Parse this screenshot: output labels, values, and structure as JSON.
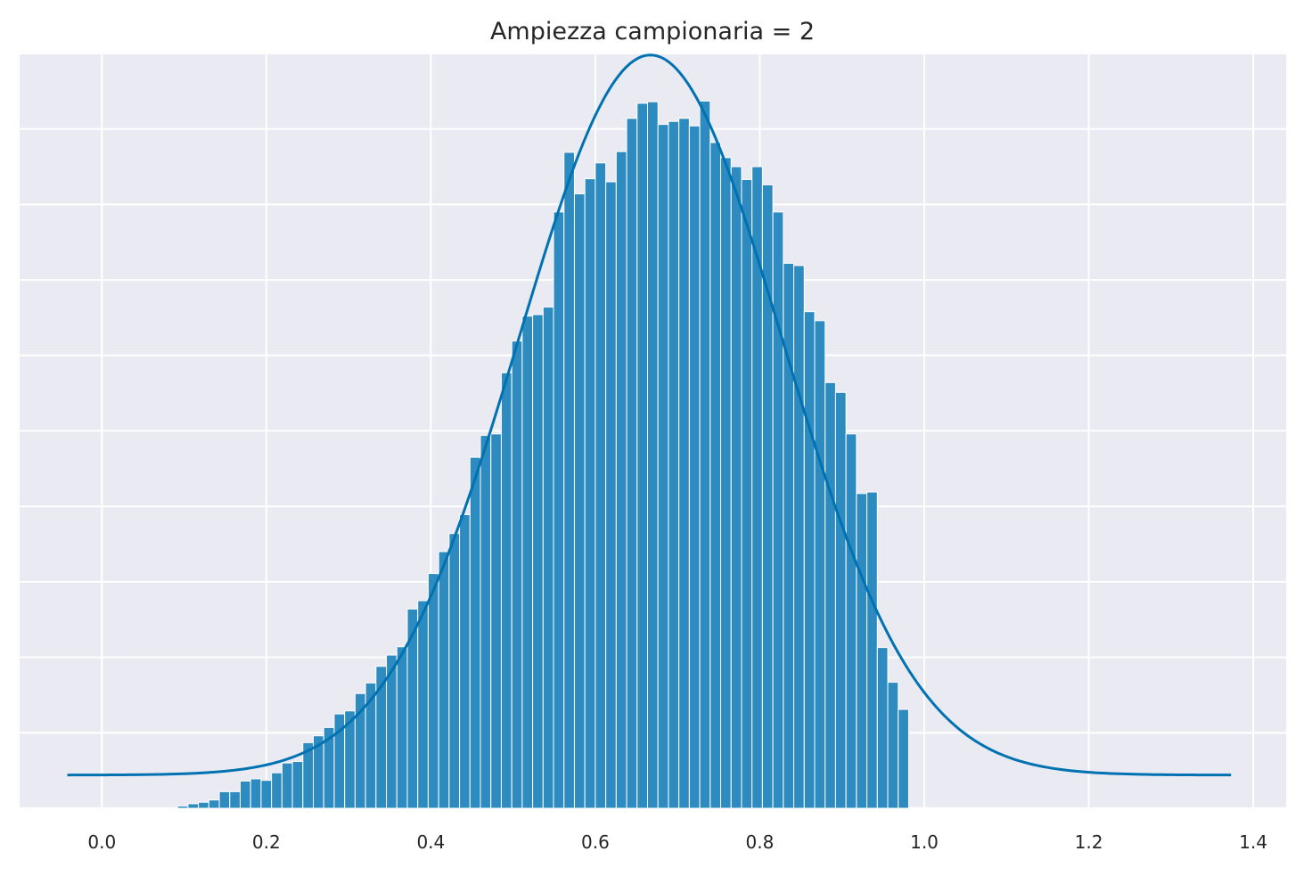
{
  "chart_data": {
    "type": "bar",
    "title": "Ampiezza campionaria = 2",
    "xlabel": "",
    "ylabel": "",
    "xlim": [
      -0.1,
      1.44
    ],
    "ylim": [
      0,
      1.0
    ],
    "x_ticks": [
      {
        "value": 0.0,
        "label": "0.0"
      },
      {
        "value": 0.2,
        "label": "0.2"
      },
      {
        "value": 0.4,
        "label": "0.4"
      },
      {
        "value": 0.6,
        "label": "0.6"
      },
      {
        "value": 0.8,
        "label": "0.8"
      },
      {
        "value": 1.0,
        "label": "1.0"
      },
      {
        "value": 1.2,
        "label": "1.2"
      },
      {
        "value": 1.4,
        "label": "1.4"
      }
    ],
    "grid": true,
    "colors": {
      "bar": "#2e8bc0",
      "bar_edge": "#ffffff",
      "curve": "#0072b2",
      "axes_background": "#eaeaf2",
      "grid": "#ffffff"
    },
    "series": [
      {
        "kind": "histogram",
        "bin_width": 0.0127,
        "bins_start": [
          0.092,
          0.1047,
          0.1174,
          0.1301,
          0.1428,
          0.1555,
          0.1682,
          0.1809,
          0.1936,
          0.2063,
          0.219,
          0.2317,
          0.2444,
          0.2571,
          0.2698,
          0.2825,
          0.2952,
          0.3079,
          0.3206,
          0.3333,
          0.346,
          0.3587,
          0.3714,
          0.3841,
          0.3968,
          0.4095,
          0.4222,
          0.4349,
          0.4476,
          0.4603,
          0.473,
          0.4857,
          0.4984,
          0.5111,
          0.5238,
          0.5365,
          0.5492,
          0.5619,
          0.5746,
          0.5873,
          0.6,
          0.6127,
          0.6254,
          0.6381,
          0.6508,
          0.6635,
          0.6762,
          0.6889,
          0.7016,
          0.7143,
          0.727,
          0.7397,
          0.7524,
          0.7651,
          0.7778,
          0.7905,
          0.8032,
          0.8159,
          0.8286,
          0.8413,
          0.854,
          0.8667,
          0.8794,
          0.8921,
          0.9048,
          0.9175,
          0.9302,
          0.9429,
          0.9556,
          0.9683,
          0.981,
          0.9937
        ],
        "values": [
          0.003,
          0.006,
          0.008,
          0.011,
          0.022,
          0.022,
          0.036,
          0.039,
          0.037,
          0.047,
          0.06,
          0.062,
          0.087,
          0.096,
          0.107,
          0.125,
          0.129,
          0.152,
          0.166,
          0.188,
          0.203,
          0.214,
          0.264,
          0.275,
          0.311,
          0.34,
          0.364,
          0.389,
          0.465,
          0.494,
          0.496,
          0.577,
          0.619,
          0.652,
          0.654,
          0.664,
          0.79,
          0.869,
          0.814,
          0.834,
          0.855,
          0.83,
          0.87,
          0.914,
          0.934,
          0.936,
          0.906,
          0.91,
          0.914,
          0.904,
          0.937,
          0.882,
          0.862,
          0.85,
          0.833,
          0.85,
          0.826,
          0.79,
          0.722,
          0.719,
          0.658,
          0.646,
          0.564,
          0.551,
          0.496,
          0.417,
          0.419,
          0.213,
          0.167,
          0.131,
          0.001,
          0.001
        ]
      },
      {
        "kind": "curve",
        "name": "",
        "x_range": [
          -0.042,
          1.373
        ],
        "mean": 0.667,
        "sd": 0.16,
        "peak": 0.954
      }
    ]
  }
}
